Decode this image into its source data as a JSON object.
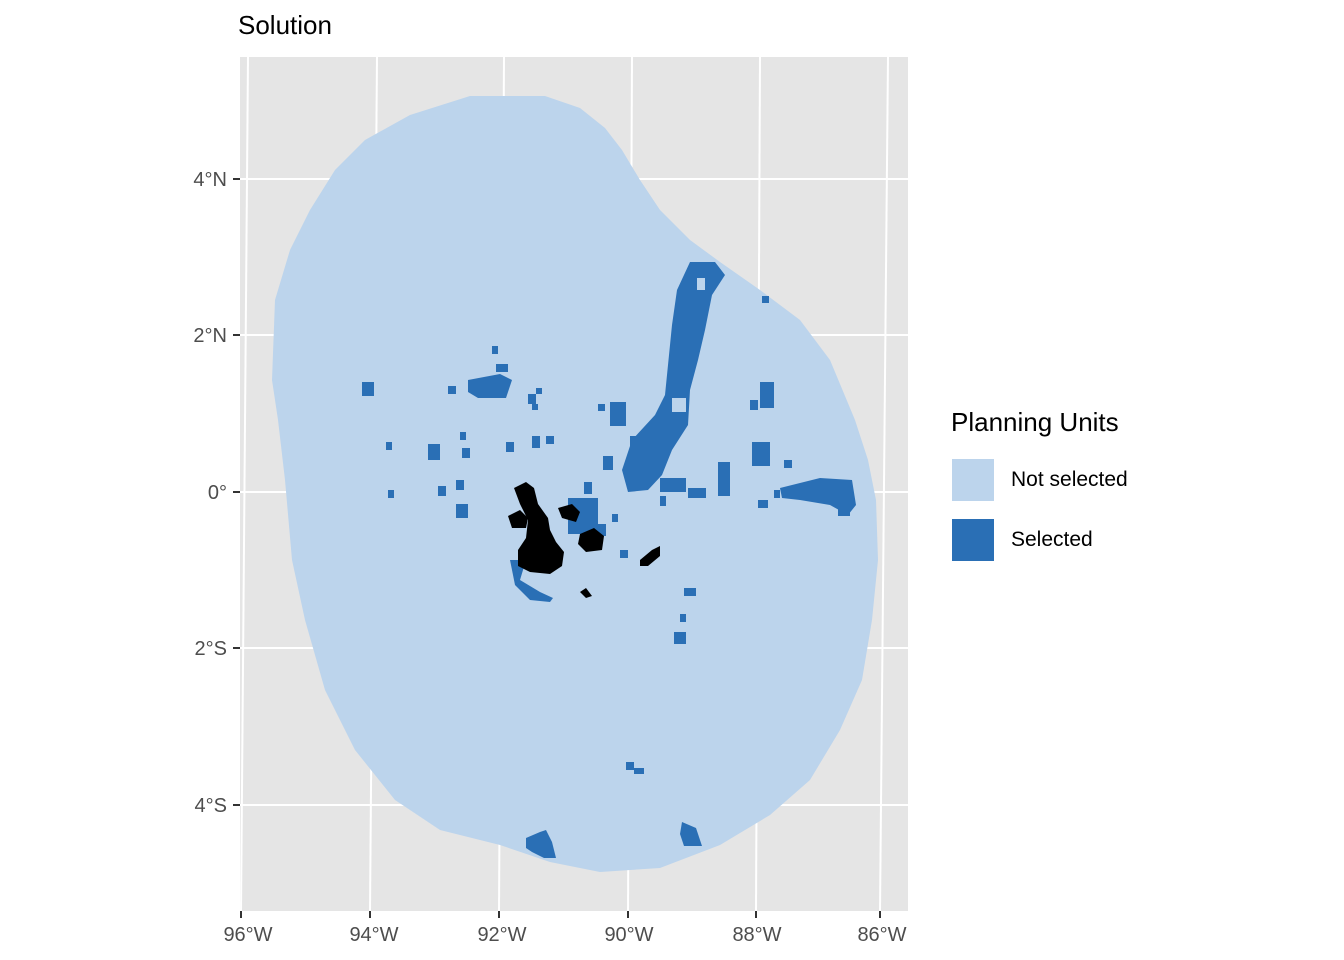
{
  "title": "Solution",
  "legend": {
    "title": "Planning Units",
    "items": [
      {
        "label": "Not selected",
        "color": "#bcd4ec"
      },
      {
        "label": "Selected",
        "color": "#2a6fb5"
      }
    ]
  },
  "colors": {
    "panel_background": "#e5e5e5",
    "grid_lines": "#ffffff",
    "land": "#000000",
    "tick_text": "#4d4d4d"
  },
  "axes": {
    "x_ticks": [
      "96°W",
      "94°W",
      "92°W",
      "90°W",
      "88°W",
      "86°W"
    ],
    "y_ticks": [
      "4°N",
      "2°N",
      "0°",
      "2°S",
      "4°S"
    ]
  }
}
